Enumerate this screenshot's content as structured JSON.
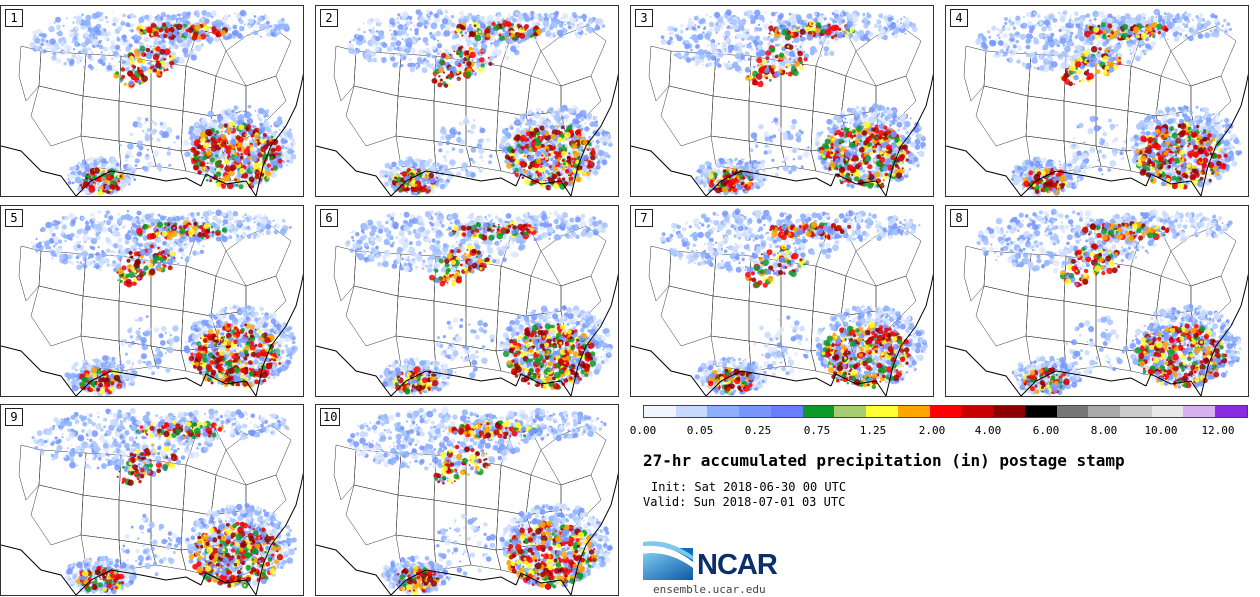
{
  "panels": [
    {
      "label": "1"
    },
    {
      "label": "2"
    },
    {
      "label": "3"
    },
    {
      "label": "4"
    },
    {
      "label": "5"
    },
    {
      "label": "6"
    },
    {
      "label": "7"
    },
    {
      "label": "8"
    },
    {
      "label": "9"
    },
    {
      "label": "10"
    }
  ],
  "colorbar": {
    "colors": [
      "#f0f5ff",
      "#c6d9ff",
      "#8cb0ff",
      "#7797ff",
      "#6a7dff",
      "#0d9a2a",
      "#a8cc70",
      "#ffff33",
      "#ffa500",
      "#ff0000",
      "#c80000",
      "#8b0000",
      "#000000",
      "#777777",
      "#a8a8a8",
      "#cccccc",
      "#e8e8e8",
      "#d8b0f0",
      "#8a2be2"
    ],
    "labels": [
      "0.00",
      "0.05",
      "0.25",
      "0.75",
      "1.25",
      "2.00",
      "4.00",
      "6.00",
      "8.00",
      "10.00",
      "12.00"
    ]
  },
  "title": "27-hr accumulated precipitation (in) postage stamp",
  "init": "Init: Sat 2018-06-30 00 UTC",
  "valid": "Valid: Sun 2018-07-01 03 UTC",
  "logo": {
    "text": "NCAR",
    "site": "ensemble.ucar.edu",
    "color": "#0a2f6b"
  }
}
